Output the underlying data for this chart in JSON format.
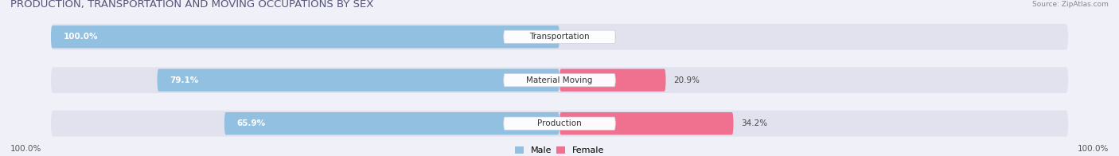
{
  "title": "PRODUCTION, TRANSPORTATION AND MOVING OCCUPATIONS BY SEX",
  "source": "Source: ZipAtlas.com",
  "categories": [
    "Transportation",
    "Material Moving",
    "Production"
  ],
  "male_values": [
    100.0,
    79.1,
    65.9
  ],
  "female_values": [
    0.0,
    20.9,
    34.2
  ],
  "male_color": "#92c0e0",
  "female_color": "#f07090",
  "bar_bg_color": "#e2e2ee",
  "axis_label_left": "100.0%",
  "axis_label_right": "100.0%",
  "legend_male": "Male",
  "legend_female": "Female",
  "title_fontsize": 9.5,
  "bar_height": 0.52,
  "bg_color": "#f0f0f8",
  "total_width": 100
}
